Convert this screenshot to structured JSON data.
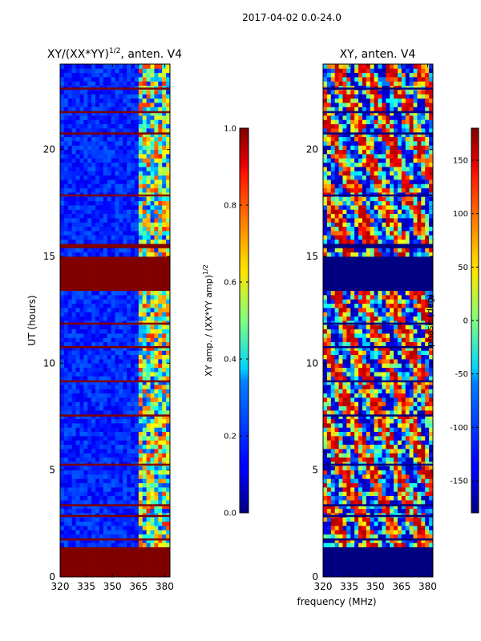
{
  "figure": {
    "suptitle": "2017-04-02 0.0-24.0",
    "xlabel": "frequency (MHz)"
  },
  "colors": {
    "high": "#7f0000",
    "low": "#00007f",
    "axis": "#000000",
    "background": "#ffffff"
  },
  "chart_data": [
    {
      "type": "heatmap",
      "title": "XY/(XX*YY)",
      "title_sup": "1/2",
      "title_suffix": ", anten. V4",
      "xlabel": "",
      "ylabel": "UT (hours)",
      "xlim": [
        320,
        383
      ],
      "ylim": [
        0,
        24
      ],
      "xticks": [
        "320",
        "335",
        "350",
        "365",
        "380"
      ],
      "yticks": [
        "0",
        "5",
        "10",
        "15",
        "20"
      ],
      "colormap": "jet",
      "colorbar": {
        "label": "XY amp. / (XX*YY amp)",
        "label_sup": "1/2",
        "range": [
          0,
          1
        ],
        "ticks": [
          "0.0",
          "0.2",
          "0.4",
          "0.6",
          "0.8",
          "1.0"
        ]
      },
      "flagged_time_ranges_hours": [
        [
          0,
          1.5
        ],
        [
          13.4,
          14.9
        ],
        [
          15.4,
          15.7
        ]
      ],
      "high_band_mhz": [
        363,
        383
      ]
    },
    {
      "type": "heatmap",
      "title": "XY, anten. V4",
      "xlabel": "frequency (MHz)",
      "ylabel": "",
      "xlim": [
        320,
        383
      ],
      "ylim": [
        0,
        24
      ],
      "xticks": [
        "320",
        "335",
        "350",
        "365",
        "380"
      ],
      "yticks": [
        "0",
        "5",
        "10",
        "15",
        "20"
      ],
      "colormap": "jet",
      "colorbar": {
        "label": "phase (deg)",
        "range": [
          -180,
          180
        ],
        "ticks": [
          "-150",
          "-100",
          "-50",
          "0",
          "50",
          "100",
          "150"
        ]
      },
      "flagged_time_ranges_hours": [
        [
          0,
          1.5
        ],
        [
          13.4,
          14.9
        ],
        [
          15.4,
          15.7
        ]
      ]
    }
  ]
}
